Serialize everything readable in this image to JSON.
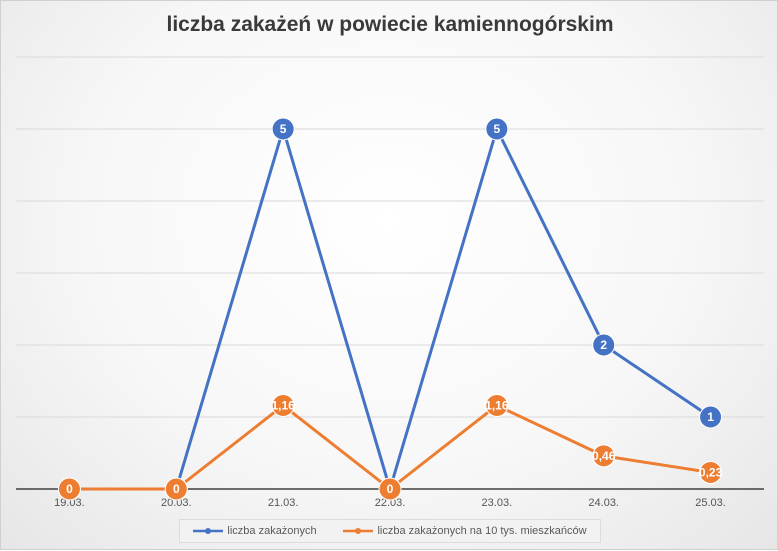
{
  "chart_data": {
    "type": "line",
    "title": "liczba zakażeń w powiecie kamiennogórskim",
    "categories": [
      "19.03.",
      "20.03.",
      "21.03.",
      "22.03.",
      "23.03.",
      "24.03.",
      "25.03."
    ],
    "ylim": [
      0,
      5
    ],
    "grid": true,
    "legend_position": "bottom",
    "series": [
      {
        "name": "liczba zakażonych",
        "color": "#4472c4",
        "values": [
          0,
          0,
          5,
          0,
          5,
          2,
          1
        ],
        "labels": [
          "0",
          "0",
          "5",
          "0",
          "5",
          "2",
          "1"
        ]
      },
      {
        "name": "liczba zakażonych na 10 tys. mieszkańców",
        "color": "#ed7d31",
        "values": [
          0,
          0,
          1.16,
          0,
          1.16,
          0.46,
          0.23
        ],
        "labels": [
          "0",
          "0",
          "1,16",
          "0",
          "1,16",
          "0,46",
          "0,23"
        ]
      }
    ]
  }
}
